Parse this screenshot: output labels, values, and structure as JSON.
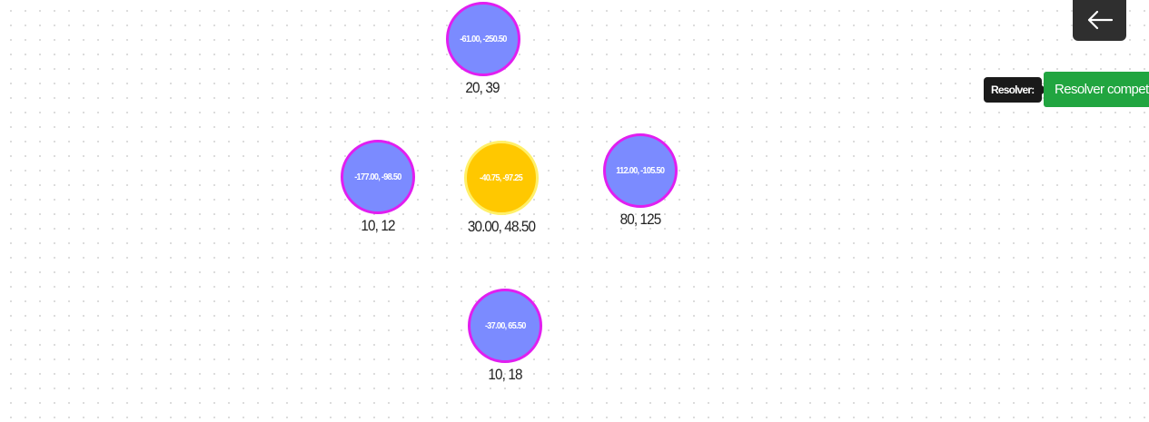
{
  "nodes": {
    "top": {
      "coords": "-61.00, -250.50",
      "label": "20, 39"
    },
    "left": {
      "coords": "-177.00, -98.50",
      "label": "10, 12"
    },
    "center": {
      "coords": "-40.75, -97.25",
      "label": "30.00, 48.50"
    },
    "right": {
      "coords": "112.00, -105.50",
      "label": "80, 125"
    },
    "bottom": {
      "coords": "-37.00, 65.50",
      "label": "10, 18"
    }
  },
  "controls": {
    "back_icon": "arrow-left-icon",
    "resolver_tag": "Resolver:",
    "resolver_button": "Resolver compet"
  },
  "colors": {
    "node_fill": "#7b8bff",
    "node_border": "#e11ef0",
    "center_fill": "#ffc800",
    "center_border": "#fff06a",
    "resolver_button": "#21a540",
    "dark_button": "#2f2f2f"
  }
}
